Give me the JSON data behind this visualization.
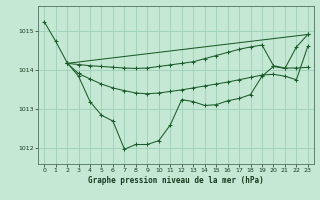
{
  "title": "Graphe pression niveau de la mer (hPa)",
  "bg_color": "#c5e8d5",
  "grid_color": "#9ecfb8",
  "line_color": "#1a5c28",
  "xlim": [
    -0.5,
    23.5
  ],
  "ylim": [
    1011.6,
    1015.65
  ],
  "yticks": [
    1012,
    1013,
    1014,
    1015
  ],
  "xticks": [
    0,
    1,
    2,
    3,
    4,
    5,
    6,
    7,
    8,
    9,
    10,
    11,
    12,
    13,
    14,
    15,
    16,
    17,
    18,
    19,
    20,
    21,
    22,
    23
  ],
  "series": [
    {
      "x": [
        0,
        1,
        2,
        3,
        4,
        5,
        6,
        7,
        8,
        9,
        10,
        11,
        12,
        13,
        14,
        15,
        16,
        17,
        18,
        19,
        20,
        21,
        22,
        23
      ],
      "y": [
        1015.25,
        1014.75,
        1014.2,
        1013.85,
        1013.2,
        1012.85,
        1012.7,
        1011.98,
        1012.1,
        1012.1,
        1012.2,
        1012.6,
        1013.25,
        1013.2,
        1013.1,
        1013.12,
        1013.22,
        1013.28,
        1013.38,
        1013.85,
        1014.1,
        1014.05,
        1014.6,
        1014.92
      ]
    },
    {
      "x": [
        2,
        3,
        4,
        5,
        6,
        7,
        8,
        9,
        10,
        11,
        12,
        13,
        14,
        15,
        16,
        17,
        18,
        19,
        20,
        21,
        22,
        23
      ],
      "y": [
        1014.18,
        1014.15,
        1014.12,
        1014.1,
        1014.08,
        1014.06,
        1014.05,
        1014.06,
        1014.1,
        1014.14,
        1014.18,
        1014.22,
        1014.3,
        1014.38,
        1014.46,
        1014.54,
        1014.6,
        1014.65,
        1014.12,
        1014.06,
        1014.06,
        1014.08
      ]
    },
    {
      "x": [
        2,
        3,
        4,
        5,
        6,
        7,
        8,
        9,
        10,
        11,
        12,
        13,
        14,
        15,
        16,
        17,
        18,
        19,
        20,
        21,
        22,
        23
      ],
      "y": [
        1014.18,
        1013.92,
        1013.78,
        1013.65,
        1013.55,
        1013.48,
        1013.42,
        1013.4,
        1013.42,
        1013.46,
        1013.5,
        1013.55,
        1013.6,
        1013.65,
        1013.7,
        1013.76,
        1013.82,
        1013.88,
        1013.9,
        1013.85,
        1013.76,
        1014.62
      ]
    },
    {
      "x": [
        2,
        23
      ],
      "y": [
        1014.18,
        1014.92
      ]
    }
  ]
}
